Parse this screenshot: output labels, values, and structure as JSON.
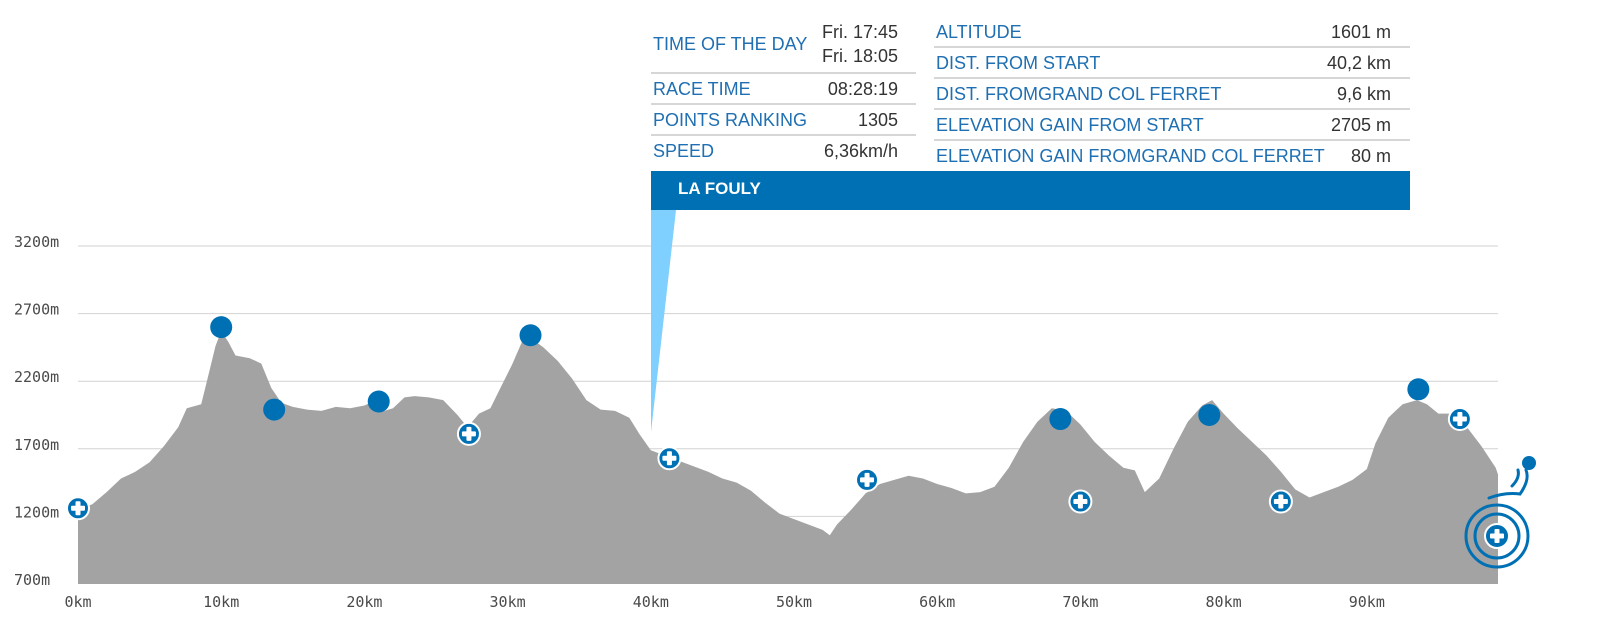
{
  "chart_data": {
    "type": "area",
    "title": "",
    "xlabel": "",
    "ylabel": "",
    "x_unit": "km",
    "y_unit": "m",
    "xlim": [
      0,
      99.5
    ],
    "ylim": [
      700,
      3200
    ],
    "x_tick_labels": [
      "0km",
      "10km",
      "20km",
      "30km",
      "40km",
      "50km",
      "60km",
      "70km",
      "80km",
      "90km"
    ],
    "y_tick_labels": [
      "700m",
      "1200m",
      "1700m",
      "2200m",
      "2700m",
      "3200m"
    ],
    "grid": true,
    "fill_color": "#a3a3a3",
    "accent_color": "#0070b4",
    "highlight_color": "#7fcfff",
    "profile": [
      [
        0.0,
        1250
      ],
      [
        1.0,
        1290
      ],
      [
        2.0,
        1380
      ],
      [
        3.0,
        1480
      ],
      [
        4.0,
        1530
      ],
      [
        5.0,
        1600
      ],
      [
        6.0,
        1720
      ],
      [
        7.0,
        1860
      ],
      [
        7.6,
        2000
      ],
      [
        8.6,
        2030
      ],
      [
        9.0,
        2200
      ],
      [
        9.6,
        2460
      ],
      [
        10.0,
        2570
      ],
      [
        10.5,
        2490
      ],
      [
        11.0,
        2390
      ],
      [
        12.0,
        2370
      ],
      [
        12.8,
        2330
      ],
      [
        13.5,
        2150
      ],
      [
        14.2,
        2040
      ],
      [
        15.0,
        2010
      ],
      [
        16.0,
        1990
      ],
      [
        17.0,
        1980
      ],
      [
        18.0,
        2010
      ],
      [
        19.0,
        2000
      ],
      [
        20.0,
        2020
      ],
      [
        20.8,
        2060
      ],
      [
        21.4,
        1980
      ],
      [
        22.0,
        2000
      ],
      [
        22.8,
        2080
      ],
      [
        23.5,
        2090
      ],
      [
        24.5,
        2080
      ],
      [
        25.5,
        2060
      ],
      [
        26.5,
        1950
      ],
      [
        27.2,
        1860
      ],
      [
        28.0,
        1960
      ],
      [
        28.8,
        2000
      ],
      [
        29.5,
        2150
      ],
      [
        30.3,
        2320
      ],
      [
        31.0,
        2490
      ],
      [
        31.6,
        2520
      ],
      [
        32.5,
        2450
      ],
      [
        33.5,
        2350
      ],
      [
        34.5,
        2220
      ],
      [
        35.5,
        2060
      ],
      [
        36.5,
        1990
      ],
      [
        37.5,
        1980
      ],
      [
        38.5,
        1930
      ],
      [
        39.2,
        1810
      ],
      [
        40.0,
        1690
      ],
      [
        41.0,
        1650
      ],
      [
        42.0,
        1610
      ],
      [
        43.0,
        1570
      ],
      [
        44.0,
        1530
      ],
      [
        45.0,
        1480
      ],
      [
        46.0,
        1450
      ],
      [
        47.0,
        1390
      ],
      [
        48.0,
        1300
      ],
      [
        49.0,
        1220
      ],
      [
        50.0,
        1180
      ],
      [
        51.0,
        1140
      ],
      [
        52.0,
        1100
      ],
      [
        52.5,
        1060
      ],
      [
        53.0,
        1140
      ],
      [
        54.0,
        1250
      ],
      [
        55.0,
        1370
      ],
      [
        56.0,
        1440
      ],
      [
        57.0,
        1470
      ],
      [
        58.0,
        1500
      ],
      [
        59.0,
        1480
      ],
      [
        60.0,
        1440
      ],
      [
        61.0,
        1410
      ],
      [
        62.0,
        1370
      ],
      [
        63.0,
        1380
      ],
      [
        64.0,
        1420
      ],
      [
        65.0,
        1560
      ],
      [
        66.0,
        1750
      ],
      [
        67.0,
        1900
      ],
      [
        68.0,
        2000
      ],
      [
        69.0,
        1980
      ],
      [
        70.0,
        1880
      ],
      [
        71.0,
        1750
      ],
      [
        72.0,
        1650
      ],
      [
        73.0,
        1560
      ],
      [
        73.8,
        1540
      ],
      [
        74.5,
        1380
      ],
      [
        75.5,
        1480
      ],
      [
        76.5,
        1700
      ],
      [
        77.5,
        1900
      ],
      [
        78.5,
        2020
      ],
      [
        79.2,
        2060
      ],
      [
        80.0,
        1960
      ],
      [
        81.0,
        1850
      ],
      [
        82.0,
        1750
      ],
      [
        83.0,
        1650
      ],
      [
        84.0,
        1530
      ],
      [
        85.0,
        1400
      ],
      [
        86.0,
        1340
      ],
      [
        87.0,
        1380
      ],
      [
        88.0,
        1420
      ],
      [
        89.0,
        1470
      ],
      [
        90.0,
        1550
      ],
      [
        90.6,
        1740
      ],
      [
        91.5,
        1930
      ],
      [
        92.5,
        2030
      ],
      [
        93.5,
        2060
      ],
      [
        94.2,
        2030
      ],
      [
        95.0,
        1960
      ],
      [
        96.0,
        1960
      ],
      [
        97.0,
        1860
      ],
      [
        98.0,
        1720
      ],
      [
        99.0,
        1560
      ],
      [
        99.5,
        1510
      ],
      [
        100.0,
        1450
      ],
      [
        101.0,
        1320
      ],
      [
        102.0,
        1240
      ],
      [
        103.0,
        1190
      ],
      [
        103.5,
        1140
      ],
      [
        104.0,
        1050
      ]
    ],
    "summit_points": [
      {
        "x": 10.0,
        "y": 2600
      },
      {
        "x": 13.7,
        "y": 1990
      },
      {
        "x": 21.0,
        "y": 2050
      },
      {
        "x": 31.6,
        "y": 2540
      },
      {
        "x": 68.6,
        "y": 1920
      },
      {
        "x": 79.0,
        "y": 1950
      },
      {
        "x": 93.6,
        "y": 2140
      }
    ],
    "aid_stations": [
      {
        "x": 0.0,
        "y": 1260
      },
      {
        "x": 27.3,
        "y": 1810
      },
      {
        "x": 41.3,
        "y": 1630
      },
      {
        "x": 55.1,
        "y": 1470
      },
      {
        "x": 70.0,
        "y": 1310
      },
      {
        "x": 84.0,
        "y": 1310
      },
      {
        "x": 96.5,
        "y": 1920
      }
    ],
    "finish": {
      "x": 99.3,
      "y": 1060
    },
    "selected": {
      "x": 40.2,
      "y": 1601,
      "name": "LA FOULY"
    }
  },
  "info_panel": {
    "title": "LA FOULY",
    "left": [
      {
        "label": "TIME OF THE DAY",
        "values": [
          "Fri. 17:45",
          "Fri. 18:05"
        ]
      },
      {
        "label": "RACE TIME",
        "values": [
          "08:28:19"
        ]
      },
      {
        "label": "POINTS RANKING",
        "values": [
          "1305"
        ]
      },
      {
        "label": "SPEED",
        "values": [
          "6,36km/h"
        ]
      }
    ],
    "right": [
      {
        "label": "ALTITUDE",
        "value": "1601 m"
      },
      {
        "label": "DIST. FROM START",
        "value": "40,2 km"
      },
      {
        "label": "DIST. FROMGRAND COL FERRET",
        "value": "9,6 km"
      },
      {
        "label": "ELEVATION GAIN FROM START",
        "value": "2705 m"
      },
      {
        "label": "ELEVATION GAIN FROMGRAND COL FERRET",
        "value": "80 m"
      }
    ]
  }
}
